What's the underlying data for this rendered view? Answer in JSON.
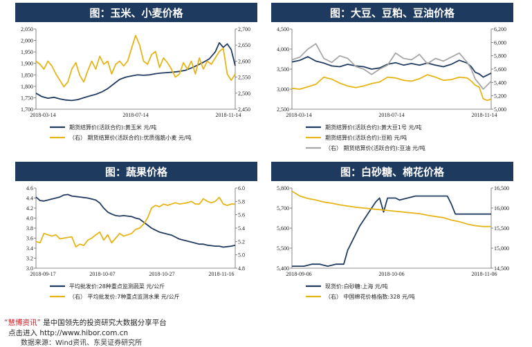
{
  "chart_data": [
    {
      "type": "line",
      "title": "图：玉米、小麦价格",
      "x_ticks": [
        "2018-03-14",
        "2018-07-14",
        "2018-11-14"
      ],
      "y_left_ticks": [
        "1,700",
        "1,750",
        "1,800",
        "1,850",
        "1,900",
        "1,950",
        "2,000",
        "2,050"
      ],
      "y_right_ticks": [
        "2,450",
        "2,500",
        "2,550",
        "2,600",
        "2,650",
        "2,700"
      ],
      "ylim_left": [
        1700,
        2050
      ],
      "ylim_right": [
        2450,
        2700
      ],
      "x_range": [
        0,
        100
      ],
      "series": [
        {
          "name": "期货结算价(活跃合约):黄玉米  元/吨",
          "axis": "left",
          "color": "#1f3a5f",
          "x": [
            0,
            3,
            6,
            9,
            12,
            15,
            18,
            21,
            24,
            27,
            30,
            33,
            36,
            39,
            42,
            45,
            48,
            51,
            54,
            57,
            60,
            63,
            66,
            69,
            72,
            75,
            78,
            81,
            84,
            87,
            90,
            92,
            94,
            96,
            98,
            100
          ],
          "y": [
            1770,
            1755,
            1748,
            1752,
            1745,
            1740,
            1738,
            1742,
            1750,
            1758,
            1765,
            1775,
            1790,
            1810,
            1830,
            1840,
            1845,
            1850,
            1848,
            1850,
            1855,
            1858,
            1860,
            1862,
            1865,
            1870,
            1880,
            1892,
            1905,
            1920,
            1950,
            1990,
            1970,
            1985,
            1960,
            1890
          ]
        },
        {
          "name": "（右）  期货结算价(活跃合约):优质强筋小麦  元/吨",
          "axis": "right",
          "color": "#e6b416",
          "x": [
            0,
            2,
            4,
            6,
            8,
            10,
            12,
            14,
            16,
            18,
            20,
            22,
            24,
            26,
            28,
            30,
            32,
            34,
            36,
            38,
            40,
            42,
            44,
            46,
            48,
            50,
            52,
            54,
            56,
            58,
            60,
            62,
            64,
            66,
            68,
            70,
            72,
            74,
            76,
            78,
            80,
            82,
            84,
            86,
            88,
            90,
            92,
            94,
            96,
            98,
            100
          ],
          "y": [
            2600,
            2590,
            2575,
            2600,
            2585,
            2560,
            2540,
            2520,
            2535,
            2575,
            2595,
            2555,
            2535,
            2570,
            2600,
            2575,
            2615,
            2590,
            2600,
            2560,
            2590,
            2600,
            2585,
            2600,
            2640,
            2680,
            2650,
            2600,
            2590,
            2620,
            2630,
            2580,
            2610,
            2595,
            2575,
            2550,
            2560,
            2595,
            2575,
            2600,
            2560,
            2610,
            2575,
            2600,
            2590,
            2610,
            2630,
            2640,
            2560,
            2540,
            2560
          ]
        }
      ]
    },
    {
      "type": "line",
      "title": "图：大豆、豆粕、豆油价格",
      "x_ticks": [
        "2018-03-14",
        "2018-07-14",
        "2018-11-14"
      ],
      "y_left_ticks": [
        "2,500",
        "3,000",
        "3,500",
        "4,000",
        "4,500"
      ],
      "y_right_ticks": [
        "5,000",
        "5,200",
        "5,400",
        "5,600",
        "5,800",
        "6,000",
        "6,200"
      ],
      "ylim_left": [
        2500,
        4500
      ],
      "ylim_right": [
        5000,
        6200
      ],
      "x_range": [
        0,
        100
      ],
      "series": [
        {
          "name": "期货结算价(活跃合约):黄大豆1号  元/吨",
          "axis": "left",
          "color": "#1f3a5f",
          "x": [
            0,
            4,
            8,
            12,
            16,
            20,
            24,
            28,
            32,
            36,
            40,
            44,
            48,
            52,
            56,
            60,
            64,
            68,
            72,
            76,
            80,
            84,
            88,
            90,
            92,
            94,
            96,
            98,
            100
          ],
          "y": [
            3680,
            3720,
            3810,
            3700,
            3650,
            3580,
            3560,
            3620,
            3580,
            3560,
            3500,
            3530,
            3620,
            3660,
            3600,
            3640,
            3600,
            3650,
            3600,
            3560,
            3620,
            3720,
            3650,
            3560,
            3420,
            3380,
            3300,
            3350,
            3400
          ]
        },
        {
          "name": "期货结算价(活跃合约):豆粕  元/吨",
          "axis": "left",
          "color": "#e6b416",
          "x": [
            0,
            4,
            8,
            12,
            16,
            20,
            24,
            28,
            32,
            36,
            40,
            44,
            48,
            52,
            56,
            60,
            64,
            68,
            72,
            76,
            80,
            84,
            88,
            90,
            92,
            94,
            96,
            98,
            100
          ],
          "y": [
            3020,
            3000,
            3060,
            3120,
            3300,
            3250,
            3150,
            3080,
            3040,
            3080,
            3140,
            3180,
            3300,
            3280,
            3220,
            3200,
            3260,
            3360,
            3300,
            3220,
            3240,
            3300,
            3280,
            3200,
            3100,
            3050,
            2760,
            2720,
            2750
          ]
        },
        {
          "name": "（右）  期货结算价(活跃合约):豆油  元/吨",
          "axis": "right",
          "color": "#a6a6a6",
          "x": [
            0,
            4,
            8,
            12,
            16,
            20,
            24,
            28,
            32,
            36,
            40,
            44,
            48,
            52,
            56,
            60,
            64,
            68,
            72,
            76,
            80,
            84,
            88,
            90,
            92,
            94,
            96,
            98,
            100
          ],
          "y": [
            5740,
            5780,
            5900,
            5980,
            5760,
            5700,
            5800,
            5760,
            5640,
            5600,
            5520,
            5600,
            5660,
            5840,
            5760,
            5740,
            5820,
            5680,
            5760,
            5720,
            5780,
            5840,
            5700,
            5600,
            5450,
            5380,
            5300,
            5360,
            5420
          ]
        }
      ]
    },
    {
      "type": "line",
      "title": "图：蔬果价格",
      "x_ticks": [
        "2018-09-17",
        "2018-10-07",
        "2018-10-27",
        "2018-11-16"
      ],
      "y_left_ticks": [
        "3.0",
        "3.2",
        "3.4",
        "3.6",
        "3.8",
        "4.0",
        "4.2",
        "4.4",
        "4.6"
      ],
      "y_right_ticks": [
        "4.8",
        "5.0",
        "5.2",
        "5.4",
        "5.6",
        "5.8",
        "6.0"
      ],
      "ylim_left": [
        3.0,
        4.6
      ],
      "ylim_right": [
        4.8,
        6.0
      ],
      "x_range": [
        0,
        100
      ],
      "series": [
        {
          "name": "平均批发价:28种重点监测蔬菜  元/公斤",
          "axis": "left",
          "color": "#1f3a5f",
          "x": [
            0,
            2,
            4,
            6,
            8,
            10,
            12,
            14,
            16,
            18,
            20,
            22,
            24,
            26,
            28,
            30,
            32,
            34,
            36,
            38,
            40,
            42,
            44,
            46,
            48,
            50,
            52,
            54,
            56,
            58,
            60,
            62,
            64,
            66,
            68,
            70,
            72,
            74,
            76,
            78,
            80,
            82,
            84,
            86,
            88,
            90,
            92,
            94,
            96,
            98,
            100
          ],
          "y": [
            4.42,
            4.35,
            4.34,
            4.36,
            4.38,
            4.4,
            4.42,
            4.46,
            4.47,
            4.44,
            4.43,
            4.42,
            4.41,
            4.4,
            4.38,
            4.36,
            4.3,
            4.2,
            4.12,
            4.08,
            4.05,
            4.04,
            4.05,
            4.04,
            4.03,
            4.0,
            3.98,
            3.92,
            3.86,
            3.8,
            3.76,
            3.72,
            3.7,
            3.68,
            3.66,
            3.62,
            3.58,
            3.56,
            3.54,
            3.52,
            3.5,
            3.48,
            3.48,
            3.46,
            3.45,
            3.44,
            3.44,
            3.42,
            3.43,
            3.44,
            3.46
          ]
        },
        {
          "name": "（右）  平均批发价:7种重点监测水果  元/公斤",
          "axis": "right",
          "color": "#e6b416",
          "x": [
            0,
            2,
            4,
            6,
            8,
            10,
            12,
            14,
            16,
            18,
            20,
            22,
            24,
            26,
            28,
            30,
            32,
            34,
            36,
            38,
            40,
            42,
            44,
            46,
            48,
            50,
            52,
            54,
            56,
            58,
            60,
            62,
            64,
            66,
            68,
            70,
            72,
            74,
            76,
            78,
            80,
            82,
            84,
            86,
            88,
            90,
            92,
            94,
            96,
            98,
            100
          ],
          "y": [
            5.2,
            5.18,
            5.32,
            5.3,
            5.28,
            5.3,
            5.24,
            5.25,
            5.26,
            5.27,
            5.12,
            5.16,
            5.14,
            5.22,
            5.25,
            5.3,
            5.34,
            5.22,
            5.3,
            5.18,
            5.25,
            5.32,
            5.28,
            5.3,
            5.32,
            5.38,
            5.4,
            5.46,
            5.55,
            5.7,
            5.74,
            5.72,
            5.76,
            5.74,
            5.76,
            5.78,
            5.76,
            5.77,
            5.78,
            5.8,
            5.76,
            5.76,
            5.84,
            5.8,
            5.78,
            5.8,
            5.86,
            5.76,
            5.74,
            5.76,
            5.76
          ]
        }
      ]
    },
    {
      "type": "line",
      "title": "图：白砂糖、棉花价格",
      "x_ticks": [
        "2018-09-06",
        "2018-10-06",
        "2018-11-06"
      ],
      "y_left_ticks": [
        "5,400",
        "5,500",
        "5,600",
        "5,700",
        "5,800"
      ],
      "y_right_ticks": [
        "14,500",
        "15,000",
        "15,500",
        "16,000",
        "16,500"
      ],
      "ylim_left": [
        5400,
        5800
      ],
      "ylim_right": [
        14500,
        16500
      ],
      "x_range": [
        0,
        100
      ],
      "series": [
        {
          "name": "现货价:白砂糖:上海  元/吨",
          "axis": "left",
          "color": "#1f3a5f",
          "x": [
            0,
            6,
            10,
            14,
            18,
            22,
            26,
            28,
            31,
            34,
            38,
            42,
            44,
            46,
            48,
            50,
            52,
            54,
            58,
            62,
            66,
            70,
            74,
            78,
            80,
            82,
            84,
            86,
            90,
            94,
            100
          ],
          "y": [
            5410,
            5410,
            5420,
            5420,
            5410,
            5420,
            5420,
            5490,
            5550,
            5610,
            5670,
            5730,
            5750,
            5680,
            5750,
            5750,
            5750,
            5740,
            5750,
            5760,
            5760,
            5760,
            5760,
            5760,
            5720,
            5670,
            5670,
            5670,
            5670,
            5670,
            5670
          ]
        },
        {
          "name": "（右）  中国棉花价格指数:328  元/吨",
          "axis": "right",
          "color": "#e6b416",
          "x": [
            0,
            4,
            8,
            12,
            16,
            20,
            24,
            28,
            32,
            36,
            40,
            44,
            48,
            52,
            56,
            60,
            64,
            68,
            72,
            76,
            80,
            84,
            88,
            92,
            96,
            100
          ],
          "y": [
            16420,
            16300,
            16240,
            16200,
            16150,
            16120,
            16080,
            16050,
            16020,
            16000,
            15980,
            15960,
            15940,
            15920,
            15900,
            15880,
            15860,
            15820,
            15790,
            15760,
            15700,
            15660,
            15600,
            15560,
            15540,
            15540
          ]
        }
      ]
    }
  ],
  "footer": {
    "brand": "“慧博资讯”",
    "slogan": "是中国领先的投资研究大数据分享平台",
    "url_prefix": "点击进入",
    "url": "http://www.hibor.com.cn",
    "source": "数据来源：Wind资讯、东吴证券研究所"
  }
}
